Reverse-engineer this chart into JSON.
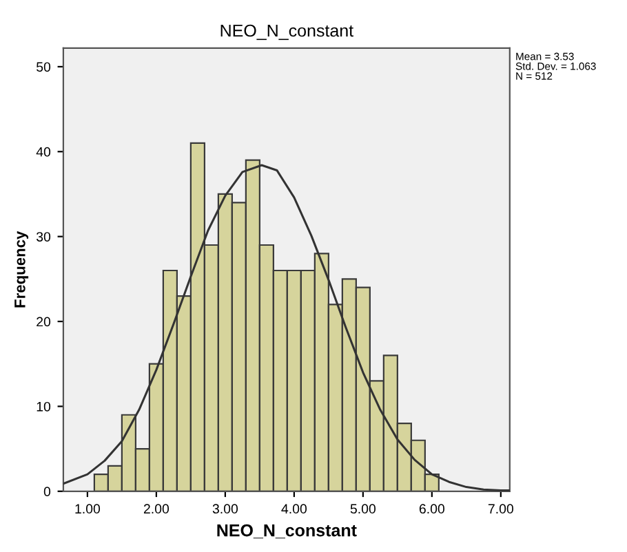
{
  "chart_data": {
    "type": "histogram",
    "title": "NEO_N_constant",
    "xlabel": "NEO_N_constant",
    "ylabel": "Frequency",
    "bins": [
      1.1,
      1.3,
      1.5,
      1.7,
      1.9,
      2.1,
      2.3,
      2.5,
      2.7,
      2.9,
      3.1,
      3.3,
      3.5,
      3.7,
      3.9,
      4.1,
      4.3,
      4.5,
      4.7,
      4.9,
      5.1,
      5.3,
      5.5,
      5.7,
      5.9,
      6.1
    ],
    "values": [
      2,
      3,
      9,
      5,
      15,
      26,
      23,
      41,
      29,
      35,
      34,
      39,
      29,
      26,
      26,
      26,
      28,
      22,
      25,
      24,
      13,
      16,
      8,
      6,
      2
    ],
    "color": "#d6d49c",
    "series": [
      {
        "type": "line",
        "color": "#333333",
        "x": [
          0.65,
          1.0,
          1.25,
          1.5,
          1.75,
          2.0,
          2.25,
          2.5,
          2.75,
          3.0,
          3.25,
          3.53,
          3.75,
          4.0,
          4.25,
          4.5,
          4.75,
          5.0,
          5.25,
          5.5,
          5.75,
          6.0,
          6.25,
          6.5,
          6.75,
          7.0,
          7.13
        ],
        "values": [
          0.9,
          2.0,
          3.6,
          5.9,
          9.6,
          14.3,
          19.7,
          25.3,
          30.7,
          34.8,
          37.6,
          38.4,
          37.8,
          34.6,
          30.1,
          24.9,
          19.3,
          14.0,
          9.6,
          6.1,
          3.7,
          2.0,
          1.1,
          0.5,
          0.2,
          0.1,
          0.1
        ]
      }
    ],
    "xlim": [
      0.65,
      7.13
    ],
    "ylim": [
      0,
      52.2
    ],
    "xticks": [
      {
        "value": 1,
        "label": "1.00"
      },
      {
        "value": 2,
        "label": "2.00"
      },
      {
        "value": 3,
        "label": "3.00"
      },
      {
        "value": 4,
        "label": "4.00"
      },
      {
        "value": 5,
        "label": "5.00"
      },
      {
        "value": 6,
        "label": "6.00"
      },
      {
        "value": 7,
        "label": "7.00"
      }
    ],
    "yticks": [
      0,
      10,
      20,
      30,
      40,
      50
    ],
    "grid": false,
    "legend": false,
    "annotations": [
      "Mean = 3.53\nStd. Dev. = 1.063\nN = 512"
    ]
  }
}
